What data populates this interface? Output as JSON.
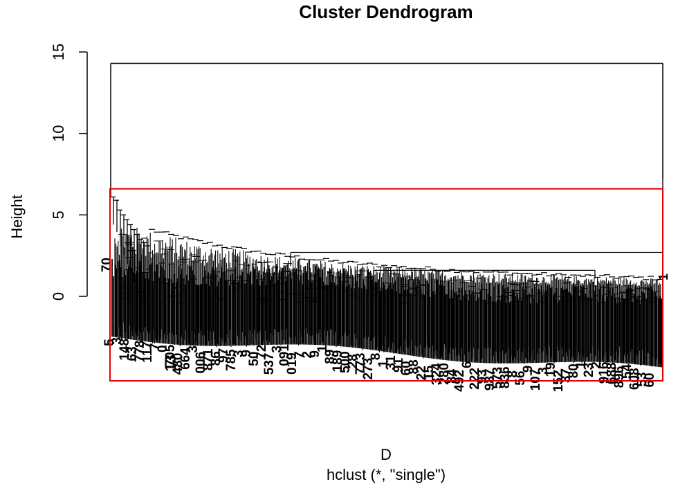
{
  "chart_data": {
    "type": "dendrogram",
    "title": "Cluster Dendrogram",
    "xlabel": "D",
    "sublabel": "hclust (*, \"single\")",
    "ylabel": "Height",
    "ylim": [
      0,
      15
    ],
    "yticks": [
      0,
      5,
      10,
      15
    ],
    "top_merge_height": 14.3,
    "right_branch_height": 7.2,
    "left_cluster_peak_height": 6.1,
    "mid_merge_height": 2.7,
    "right_merge_height": 1.6,
    "cut_rectangle": {
      "color": "#e00000",
      "y_top": 6.6,
      "y_bottom": -5.2
    },
    "leaf_labels_visible": [
      "70",
      "13",
      "1"
    ]
  },
  "colors": {
    "line": "#000000",
    "cut_rect": "#e00000",
    "background": "#ffffff"
  }
}
